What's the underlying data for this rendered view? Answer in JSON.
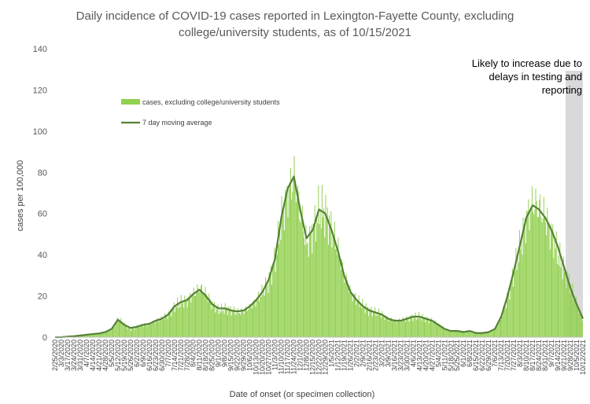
{
  "chart_data": {
    "type": "bar",
    "title_line1": "Daily incidence of COVID-19 cases reported in Lexington-Fayette County, excluding",
    "title_line2": "college/university students, as of 10/15/2021",
    "xlabel": "Date of onset (or specimen collection)",
    "ylabel": "cases per 100,000",
    "ylim": [
      0,
      140
    ],
    "yticks": [
      0,
      20,
      40,
      60,
      80,
      100,
      120,
      140
    ],
    "grid": false,
    "legend_position": "upper-left",
    "annotation": {
      "lines": [
        "Likely to increase due to",
        "delays in testing and",
        "reporting"
      ],
      "shaded_from": "9/28/2021",
      "shaded_to": "10/12/2021"
    },
    "tick_labels": [
      "2/25/2020",
      "3/3/2020",
      "3/17/2020",
      "3/24/2020",
      "3/31/2020",
      "4/7/2020",
      "4/14/2020",
      "4/21/2020",
      "4/28/2020",
      "5/5/2020",
      "5/12/2020",
      "5/19/2020",
      "5/26/2020",
      "6/2/2020",
      "6/9/2020",
      "6/16/2020",
      "6/23/2020",
      "6/30/2020",
      "7/7/2020",
      "7/14/2020",
      "7/21/2020",
      "7/28/2020",
      "8/4/2020",
      "8/11/2020",
      "8/18/2020",
      "8/25/2020",
      "9/1/2020",
      "9/8/2020",
      "9/15/2020",
      "9/22/2020",
      "9/29/2020",
      "10/6/2020",
      "10/13/2020",
      "10/20/2020",
      "10/27/2020",
      "11/3/2020",
      "11/10/2020",
      "11/17/2020",
      "11/24/2020",
      "12/1/2020",
      "12/8/2020",
      "12/15/2020",
      "12/22/2020",
      "12/29/2020",
      "1/5/2021",
      "1/12/2021",
      "1/19/2021",
      "1/26/2021",
      "2/2/2021",
      "2/9/2021",
      "2/16/2021",
      "2/23/2021",
      "3/2/2021",
      "3/9/2021",
      "3/16/2021",
      "3/23/2021",
      "3/30/2021",
      "4/6/2021",
      "4/13/2021",
      "4/20/2021",
      "4/27/2021",
      "5/4/2021",
      "5/11/2021",
      "5/18/2021",
      "5/25/2021",
      "6/1/2021",
      "6/8/2021",
      "6/15/2021",
      "6/22/2021",
      "6/29/2021",
      "7/6/2021",
      "7/13/2021",
      "7/20/2021",
      "7/27/2021",
      "8/3/2021",
      "8/10/2021",
      "8/17/2021",
      "8/24/2021",
      "8/31/2021",
      "9/7/2021",
      "9/14/2021",
      "9/21/2021",
      "9/28/2021",
      "10/5/2021",
      "10/12/2021"
    ],
    "series": [
      {
        "name": "cases, excluding college/university students",
        "color": "#92d050",
        "weekly_values": [
          0,
          0,
          0.3,
          0.5,
          0.8,
          1.2,
          1.5,
          1.8,
          2.5,
          4,
          9,
          6,
          4,
          5,
          6,
          6.5,
          8,
          9,
          11,
          15,
          17,
          18,
          21,
          24,
          21,
          16,
          13,
          14,
          13,
          12,
          13,
          15,
          18,
          22,
          28,
          38,
          58,
          70,
          78,
          60,
          45,
          52,
          62,
          60,
          52,
          42,
          30,
          22,
          18,
          15,
          13,
          12,
          11,
          9,
          8,
          8,
          9,
          10,
          10,
          9,
          8,
          6,
          4,
          3,
          3,
          2.5,
          3,
          2,
          2,
          2.5,
          4,
          10,
          20,
          32,
          45,
          58,
          65,
          63,
          58,
          50,
          40,
          32,
          25,
          15,
          8
        ]
      },
      {
        "name": "7 day moving average",
        "color": "#548235",
        "weekly_values": [
          0,
          0,
          0.3,
          0.5,
          0.8,
          1.2,
          1.5,
          1.8,
          2.5,
          4,
          8.5,
          6,
          4.5,
          5,
          6,
          6.5,
          8,
          9,
          11,
          15,
          17,
          18,
          21,
          23,
          20,
          16,
          14,
          14,
          13,
          12.5,
          13,
          15,
          18,
          22,
          28,
          38,
          58,
          72,
          78,
          62,
          48,
          52,
          62,
          60,
          52,
          42,
          30,
          22,
          18,
          15,
          13,
          12,
          11,
          9,
          8,
          8,
          9,
          10,
          10,
          9,
          8,
          6,
          4,
          3,
          3,
          2.5,
          3,
          2,
          2,
          2.5,
          4,
          10,
          20,
          32,
          45,
          58,
          64,
          62,
          58,
          52,
          44,
          34,
          24,
          16,
          9
        ]
      }
    ]
  }
}
